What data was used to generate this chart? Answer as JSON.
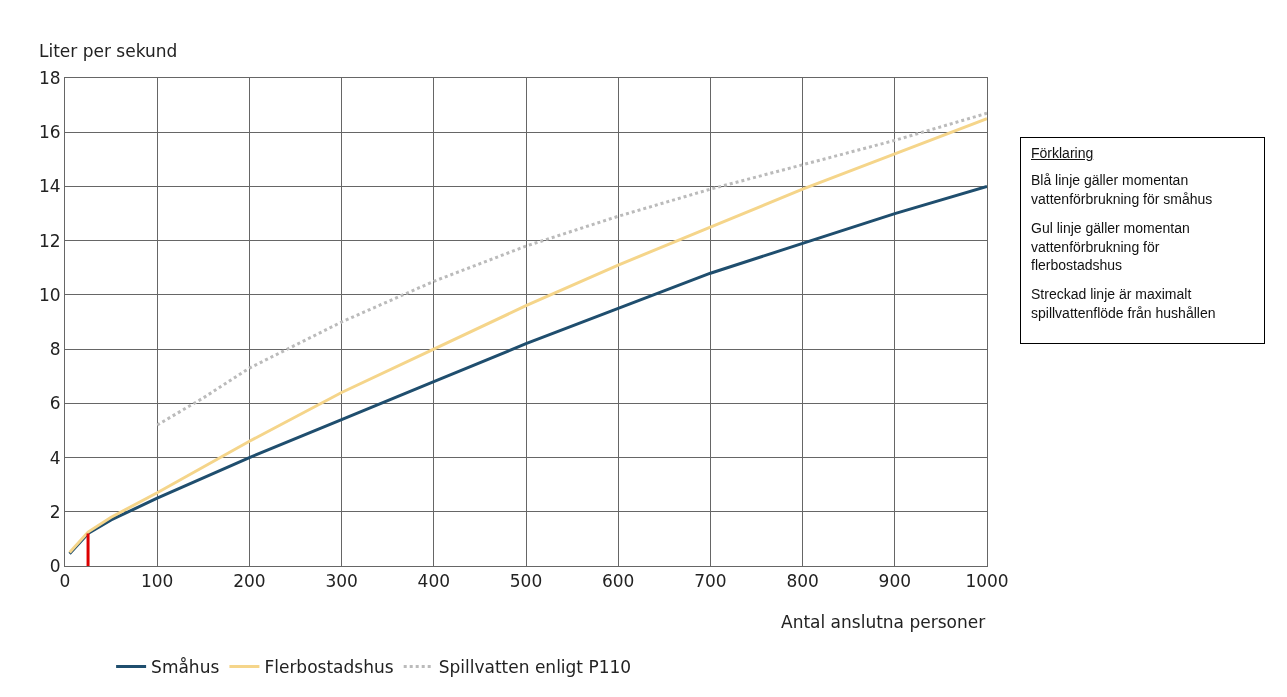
{
  "chart_data": {
    "type": "line",
    "ylabel": "Liter per sekund",
    "xlabel": "Antal anslutna personer",
    "xlim": [
      0,
      1000
    ],
    "xticks": [
      0,
      100,
      200,
      300,
      400,
      500,
      600,
      700,
      800,
      900,
      1000
    ],
    "ylim": [
      0,
      18
    ],
    "yticks": [
      0,
      2,
      4,
      6,
      8,
      10,
      12,
      14,
      16,
      18
    ],
    "grid": true,
    "legend": "bottom",
    "marker": "none",
    "series": [
      {
        "name": "Småhus",
        "color": "#1f4e6e",
        "line_style": "solid",
        "x": [
          5,
          25,
          50,
          100,
          200,
          300,
          400,
          500,
          600,
          700,
          800,
          900,
          1000
        ],
        "values": [
          0.45,
          1.2,
          1.7,
          2.5,
          4.0,
          5.4,
          6.8,
          8.2,
          9.5,
          10.8,
          11.9,
          13.0,
          14.0
        ]
      },
      {
        "name": "Flerbostadshus",
        "color": "#f5d58a",
        "line_style": "solid",
        "x": [
          5,
          25,
          50,
          100,
          200,
          300,
          400,
          500,
          600,
          700,
          800,
          900,
          1000
        ],
        "values": [
          0.5,
          1.25,
          1.8,
          2.7,
          4.6,
          6.4,
          8.0,
          9.6,
          11.1,
          12.5,
          13.9,
          15.2,
          16.5
        ]
      },
      {
        "name": "Spillvatten enligt P110",
        "color": "#bbbbbb",
        "line_style": "dotted",
        "x": [
          100,
          150,
          200,
          300,
          400,
          500,
          600,
          700,
          800,
          900,
          1000
        ],
        "values": [
          5.2,
          6.2,
          7.3,
          9.0,
          10.5,
          11.8,
          12.9,
          13.9,
          14.8,
          15.7,
          16.7
        ]
      },
      {
        "color": "#dd0000",
        "line_style": "solid",
        "x": [
          25,
          25
        ],
        "values": [
          0,
          1.2
        ]
      }
    ],
    "annotations": [
      "Förklaring",
      "Blå linje gäller momentan vattenförbrukning för småhus",
      "Gul linje gäller momentan vattenförbrukning för flerbostadshus",
      "Streckad linje är maximalt spillvattenflöde från hushållen"
    ]
  }
}
